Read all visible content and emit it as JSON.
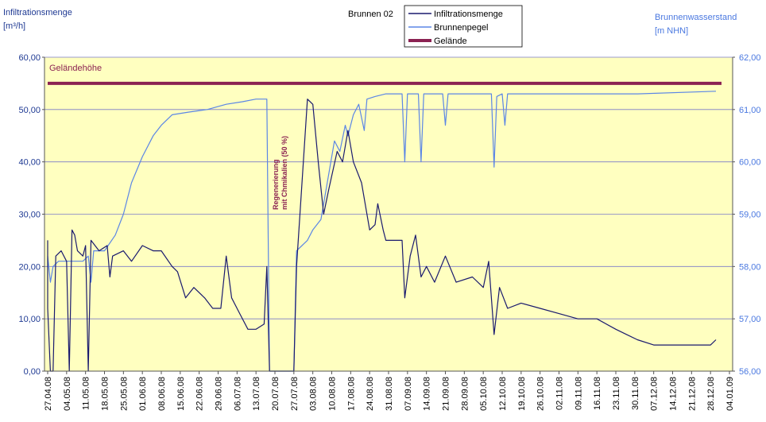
{
  "colors": {
    "plot_bg": "#FFFFC0",
    "left_axis_text": "#1F3A93",
    "right_axis_text": "#4A78E0",
    "infiltration": "#1A1A6E",
    "brunnenpegel": "#5B86E5",
    "gelaende": "#8B2252",
    "grid": "#7A7AC8",
    "annotation": "#8B2252"
  },
  "chart_data": {
    "type": "line",
    "title": "Brunnen 02",
    "ylabel_left": [
      "Infiltrationsmenge",
      "[m³/h]"
    ],
    "ylabel_right": [
      "Brunnenwasserstand",
      "[m NHN]"
    ],
    "ylim_left": [
      0,
      60
    ],
    "ylim_right": [
      56,
      62
    ],
    "yticks_left": [
      "0,00",
      "10,00",
      "20,00",
      "30,00",
      "40,00",
      "50,00",
      "60,00"
    ],
    "yticks_right": [
      "56,00",
      "57,00",
      "58,00",
      "59,00",
      "60,00",
      "61,00",
      "62,00"
    ],
    "grid": true,
    "legend_position": "top-center",
    "x_dates": [
      "27.04.08",
      "04.05.08",
      "11.05.08",
      "18.05.08",
      "25.05.08",
      "01.06.08",
      "08.06.08",
      "15.06.08",
      "22.06.08",
      "29.06.08",
      "06.07.08",
      "13.07.08",
      "20.07.08",
      "27.07.08",
      "03.08.08",
      "10.08.08",
      "17.08.08",
      "24.08.08",
      "31.08.08",
      "07.09.08",
      "14.09.08",
      "21.09.08",
      "28.09.08",
      "05.10.08",
      "12.10.08",
      "19.10.08",
      "26.10.08",
      "02.11.08",
      "09.11.08",
      "16.11.08",
      "23.11.08",
      "30.11.08",
      "07.12.08",
      "14.12.08",
      "21.12.08",
      "28.12.08",
      "04.01.09"
    ],
    "gelaende_label": "Geländehöhe",
    "annotation": [
      "Regenerierung",
      "mit Chmikalien (50 %)"
    ],
    "series": [
      {
        "name": "Infiltrationsmenge",
        "axis": "left",
        "points": [
          [
            "27.04.08",
            25
          ],
          [
            "27.04.08",
            12
          ],
          [
            "28.04.08",
            0
          ],
          [
            "29.04.08",
            0
          ],
          [
            "30.04.08",
            22
          ],
          [
            "02.05.08",
            23
          ],
          [
            "04.05.08",
            21
          ],
          [
            "05.05.08",
            0
          ],
          [
            "06.05.08",
            27
          ],
          [
            "07.05.08",
            26
          ],
          [
            "08.05.08",
            23
          ],
          [
            "10.05.08",
            22
          ],
          [
            "11.05.08",
            24
          ],
          [
            "12.05.08",
            0
          ],
          [
            "13.05.08",
            25
          ],
          [
            "16.05.08",
            23
          ],
          [
            "19.05.08",
            24
          ],
          [
            "20.05.08",
            18
          ],
          [
            "21.05.08",
            22
          ],
          [
            "25.05.08",
            23
          ],
          [
            "28.05.08",
            21
          ],
          [
            "01.06.08",
            24
          ],
          [
            "05.06.08",
            23
          ],
          [
            "08.06.08",
            23
          ],
          [
            "12.06.08",
            20
          ],
          [
            "14.06.08",
            19
          ],
          [
            "17.06.08",
            14
          ],
          [
            "20.06.08",
            16
          ],
          [
            "24.06.08",
            14
          ],
          [
            "27.06.08",
            12
          ],
          [
            "30.06.08",
            12
          ],
          [
            "02.07.08",
            22
          ],
          [
            "04.07.08",
            14
          ],
          [
            "07.07.08",
            11
          ],
          [
            "10.07.08",
            8
          ],
          [
            "13.07.08",
            8
          ],
          [
            "16.07.08",
            9
          ],
          [
            "17.07.08",
            20
          ],
          [
            "18.07.08",
            0
          ],
          [
            "27.07.08",
            0
          ],
          [
            "28.07.08",
            20
          ],
          [
            "01.08.08",
            52
          ],
          [
            "03.08.08",
            51
          ],
          [
            "05.08.08",
            40
          ],
          [
            "07.08.08",
            30
          ],
          [
            "09.08.08",
            35
          ],
          [
            "12.08.08",
            42
          ],
          [
            "14.08.08",
            40
          ],
          [
            "16.08.08",
            46
          ],
          [
            "18.08.08",
            40
          ],
          [
            "21.08.08",
            36
          ],
          [
            "24.08.08",
            27
          ],
          [
            "26.08.08",
            28
          ],
          [
            "27.08.08",
            32
          ],
          [
            "29.08.08",
            27
          ],
          [
            "30.08.08",
            25
          ],
          [
            "05.09.08",
            25
          ],
          [
            "06.09.08",
            14
          ],
          [
            "08.09.08",
            22
          ],
          [
            "10.09.08",
            26
          ],
          [
            "12.09.08",
            18
          ],
          [
            "14.09.08",
            20
          ],
          [
            "17.09.08",
            17
          ],
          [
            "21.09.08",
            22
          ],
          [
            "25.09.08",
            17
          ],
          [
            "01.10.08",
            18
          ],
          [
            "05.10.08",
            16
          ],
          [
            "07.10.08",
            21
          ],
          [
            "09.10.08",
            7
          ],
          [
            "11.10.08",
            16
          ],
          [
            "14.10.08",
            12
          ],
          [
            "19.10.08",
            13
          ],
          [
            "26.10.08",
            12
          ],
          [
            "02.11.08",
            11
          ],
          [
            "09.11.08",
            10
          ],
          [
            "16.11.08",
            10
          ],
          [
            "23.11.08",
            8
          ],
          [
            "27.11.08",
            7
          ],
          [
            "01.12.08",
            6
          ],
          [
            "07.12.08",
            5
          ],
          [
            "14.12.08",
            5
          ],
          [
            "21.12.08",
            5
          ],
          [
            "28.12.08",
            5
          ],
          [
            "30.12.08",
            6
          ]
        ]
      },
      {
        "name": "Brunnenpegel",
        "axis": "right",
        "points": [
          [
            "27.04.08",
            58.2
          ],
          [
            "28.04.08",
            57.7
          ],
          [
            "29.04.08",
            58.0
          ],
          [
            "01.05.08",
            58.1
          ],
          [
            "04.05.08",
            58.1
          ],
          [
            "10.05.08",
            58.1
          ],
          [
            "12.05.08",
            58.2
          ],
          [
            "13.05.08",
            57.7
          ],
          [
            "14.05.08",
            58.3
          ],
          [
            "18.05.08",
            58.3
          ],
          [
            "22.05.08",
            58.6
          ],
          [
            "25.05.08",
            59.0
          ],
          [
            "28.05.08",
            59.6
          ],
          [
            "01.06.08",
            60.1
          ],
          [
            "05.06.08",
            60.5
          ],
          [
            "08.06.08",
            60.7
          ],
          [
            "12.06.08",
            60.9
          ],
          [
            "18.06.08",
            60.95
          ],
          [
            "25.06.08",
            61.0
          ],
          [
            "02.07.08",
            61.1
          ],
          [
            "08.07.08",
            61.15
          ],
          [
            "13.07.08",
            61.2
          ],
          [
            "17.07.08",
            61.2
          ],
          [
            "18.07.08",
            56.0
          ],
          [
            "27.07.08",
            56.0
          ],
          [
            "28.07.08",
            58.3
          ],
          [
            "01.08.08",
            58.5
          ],
          [
            "03.08.08",
            58.7
          ],
          [
            "06.08.08",
            58.9
          ],
          [
            "09.08.08",
            59.8
          ],
          [
            "11.08.08",
            60.4
          ],
          [
            "13.08.08",
            60.2
          ],
          [
            "15.08.08",
            60.7
          ],
          [
            "16.08.08",
            60.5
          ],
          [
            "18.08.08",
            60.9
          ],
          [
            "20.08.08",
            61.1
          ],
          [
            "22.08.08",
            60.6
          ],
          [
            "23.08.08",
            61.2
          ],
          [
            "26.08.08",
            61.25
          ],
          [
            "30.08.08",
            61.3
          ],
          [
            "05.09.08",
            61.3
          ],
          [
            "06.09.08",
            60.0
          ],
          [
            "07.09.08",
            61.3
          ],
          [
            "11.09.08",
            61.3
          ],
          [
            "12.09.08",
            60.0
          ],
          [
            "13.09.08",
            61.3
          ],
          [
            "20.09.08",
            61.3
          ],
          [
            "21.09.08",
            60.7
          ],
          [
            "22.09.08",
            61.3
          ],
          [
            "08.10.08",
            61.3
          ],
          [
            "09.10.08",
            59.9
          ],
          [
            "10.10.08",
            61.25
          ],
          [
            "12.10.08",
            61.3
          ],
          [
            "13.10.08",
            60.7
          ],
          [
            "14.10.08",
            61.3
          ],
          [
            "01.11.08",
            61.3
          ],
          [
            "01.12.08",
            61.3
          ],
          [
            "30.12.08",
            61.35
          ]
        ]
      },
      {
        "name": "Gelände",
        "axis": "right",
        "constant": 61.5
      }
    ]
  }
}
